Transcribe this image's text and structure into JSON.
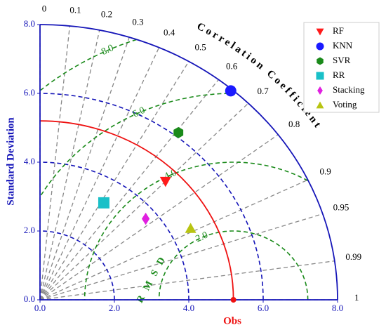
{
  "chart_data": {
    "type": "taylor",
    "title": "Correlation Coefficient",
    "y_label": "Standard Deviation",
    "rmsd_label": "RMSD",
    "reference": {
      "label": "Obs",
      "std": 5.2,
      "color": "#ee1111"
    },
    "std_max": 8,
    "xticks": [
      {
        "value": 0,
        "label": "0.0"
      },
      {
        "value": 2,
        "label": "2.0"
      },
      {
        "value": 4,
        "label": "4.0"
      },
      {
        "value": 6,
        "label": "6.0"
      },
      {
        "value": 8,
        "label": "8.0"
      }
    ],
    "yticks": [
      {
        "value": 0,
        "label": "0.0"
      },
      {
        "value": 2,
        "label": "2.0"
      },
      {
        "value": 4,
        "label": "4.0"
      },
      {
        "value": 6,
        "label": "6.0"
      },
      {
        "value": 8,
        "label": "8.0"
      }
    ],
    "correlation_ticks": [
      0,
      0.1,
      0.2,
      0.3,
      0.4,
      0.5,
      0.6,
      0.7,
      0.8,
      0.9,
      0.95,
      0.99,
      1
    ],
    "std_contours": [
      2,
      4,
      6
    ],
    "rmsd_contours": [
      {
        "value": 2,
        "label": "2.0"
      },
      {
        "value": 4,
        "label": "4.0"
      },
      {
        "value": 6,
        "label": "6.0"
      },
      {
        "value": 8,
        "label": "8.0"
      }
    ],
    "series": [
      {
        "name": "RF",
        "color": "#ff1a1a",
        "marker": "triangle-down",
        "std": 4.82,
        "correlation": 0.7
      },
      {
        "name": "KNN",
        "color": "#1a1aff",
        "marker": "circle",
        "std": 7.95,
        "correlation": 0.645
      },
      {
        "name": "SVR",
        "color": "#1a8a1a",
        "marker": "hexagon",
        "std": 6.12,
        "correlation": 0.608
      },
      {
        "name": "RR",
        "color": "#19c0c8",
        "marker": "square",
        "std": 3.3,
        "correlation": 0.52
      },
      {
        "name": "Stacking",
        "color": "#e020e0",
        "marker": "diamond",
        "std": 3.69,
        "correlation": 0.77
      },
      {
        "name": "Voting",
        "color": "#b8c412",
        "marker": "triangle-up",
        "std": 4.55,
        "correlation": 0.89
      }
    ]
  }
}
